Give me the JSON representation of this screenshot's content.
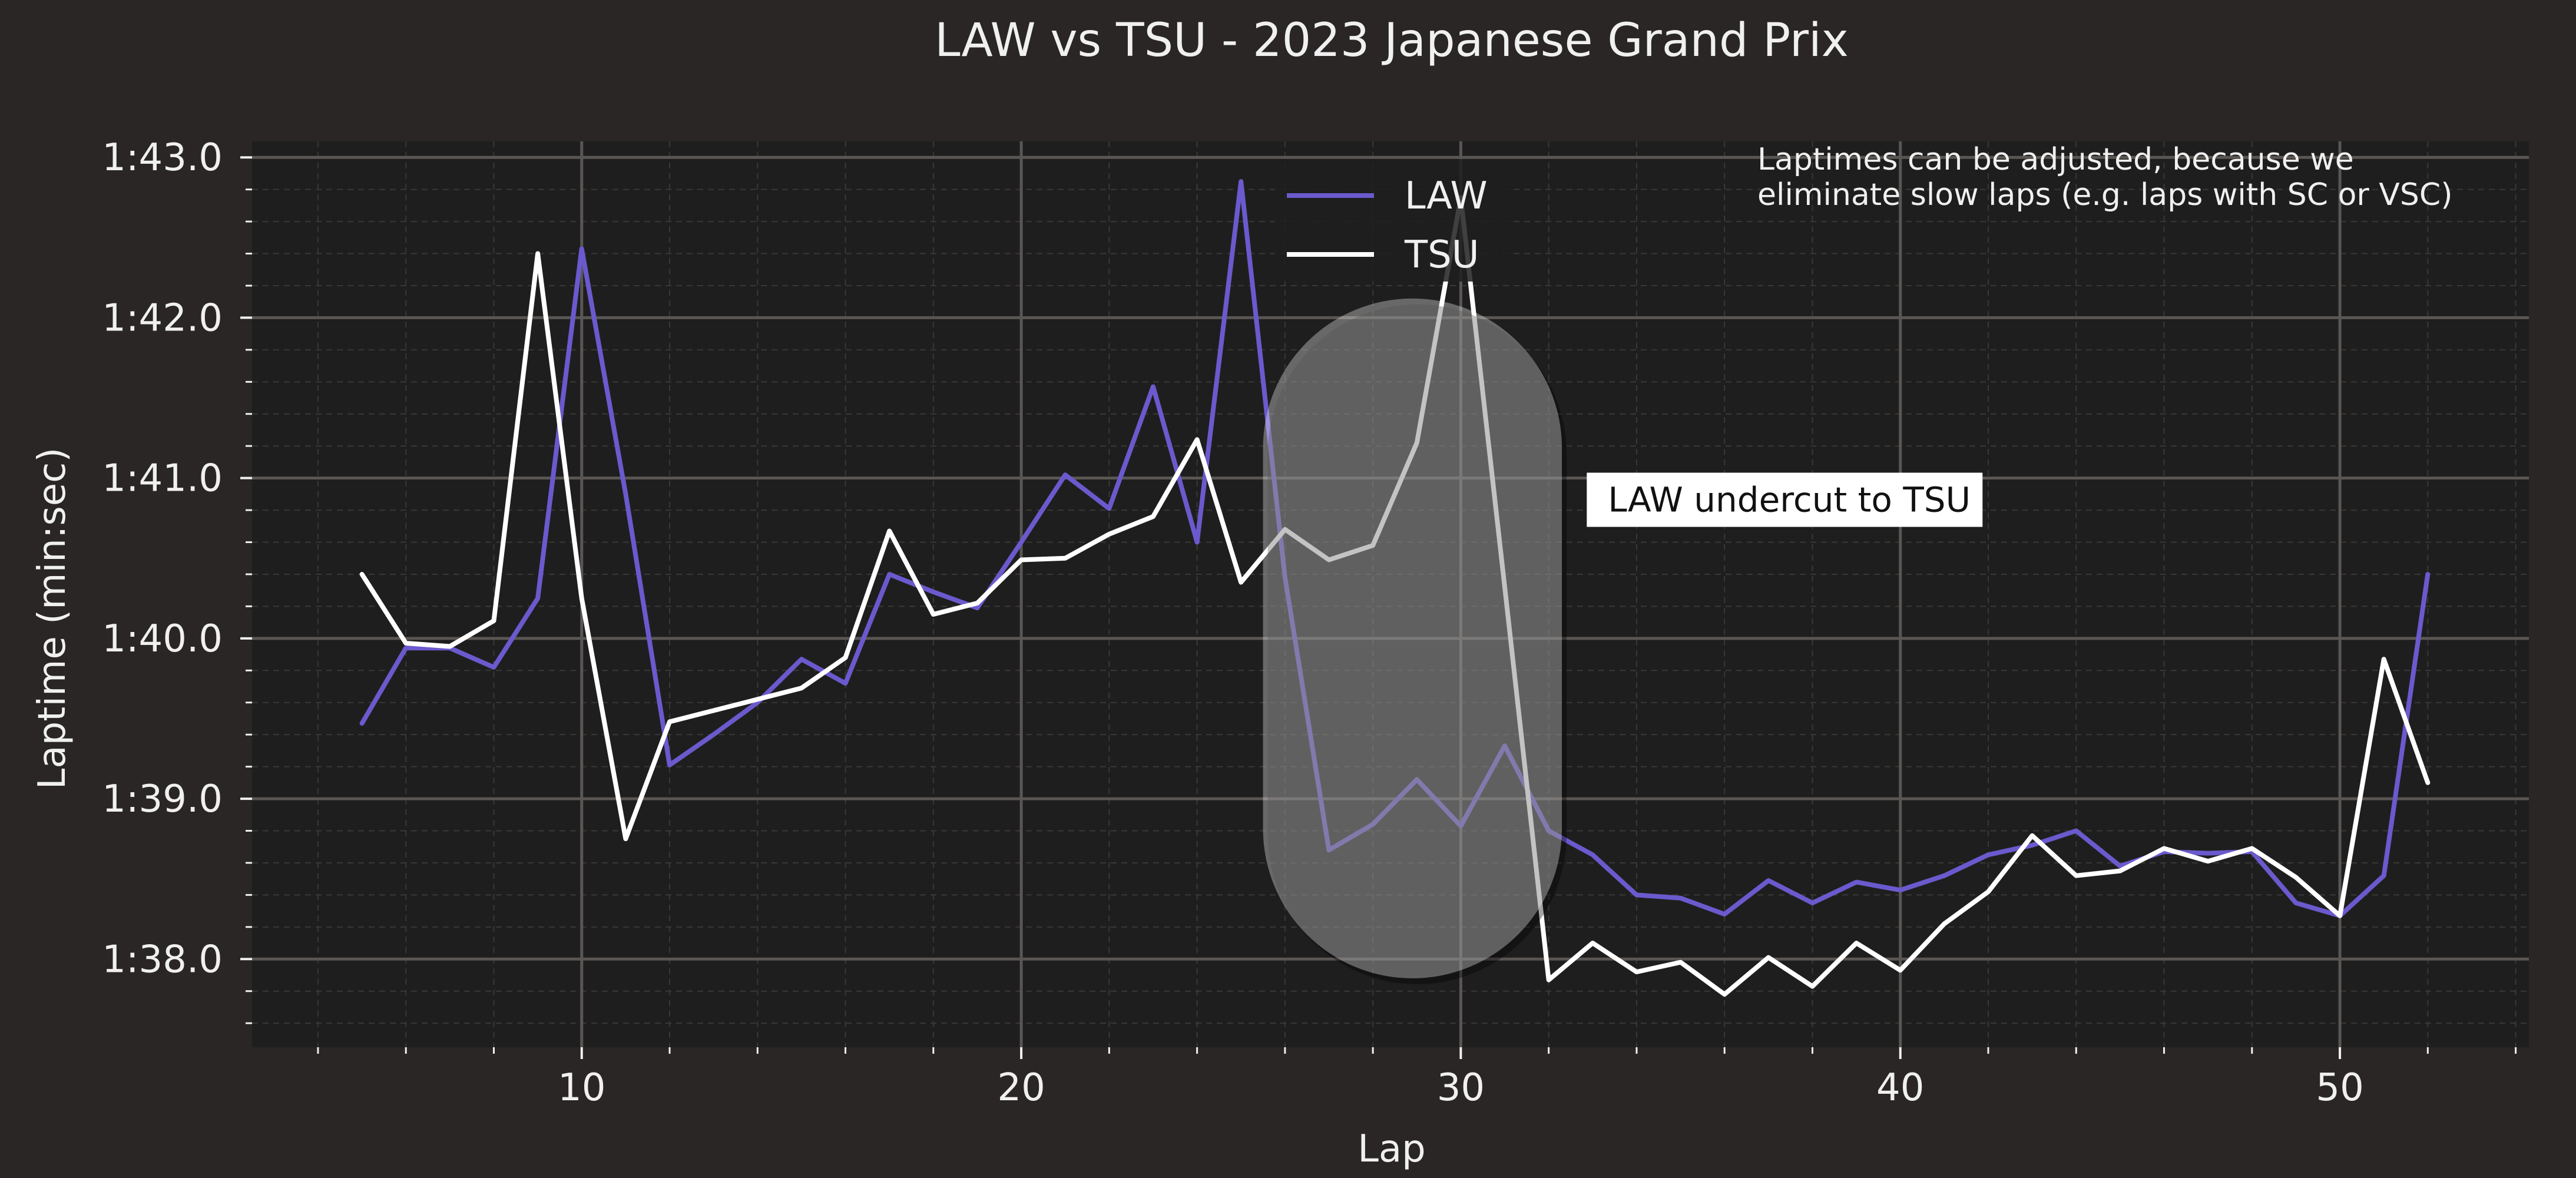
{
  "chart_data": {
    "type": "line",
    "title": "LAW vs TSU - 2023 Japanese Grand Prix",
    "xlabel": "Lap",
    "ylabel": "Laptime (min:sec)",
    "xlim": [
      2.5,
      54.3
    ],
    "ylim_seconds": [
      97.45,
      103.1
    ],
    "x_ticks": [
      10,
      20,
      30,
      40,
      50
    ],
    "y_ticks": [
      {
        "seconds": 98,
        "label": "1:38.0"
      },
      {
        "seconds": 99,
        "label": "1:39.0"
      },
      {
        "seconds": 100,
        "label": "1:40.0"
      },
      {
        "seconds": 101,
        "label": "1:41.0"
      },
      {
        "seconds": 102,
        "label": "1:42.0"
      },
      {
        "seconds": 103,
        "label": "1:43.0"
      }
    ],
    "grid": true,
    "legend_position": "top-center",
    "series": [
      {
        "name": "LAW",
        "color": "#6a5acd",
        "laps": [
          5,
          6,
          7,
          8,
          9,
          10,
          11,
          12,
          13,
          14,
          15,
          16,
          17,
          18,
          19,
          20,
          21,
          22,
          23,
          24,
          25,
          26,
          27,
          28,
          29,
          30,
          31,
          32,
          33,
          34,
          35,
          36,
          37,
          38,
          39,
          40,
          41,
          42,
          43,
          44,
          45,
          46,
          47,
          48,
          49,
          50,
          51,
          52
        ],
        "seconds": [
          99.47,
          99.94,
          99.94,
          99.82,
          100.25,
          102.43,
          100.9,
          99.21,
          99.4,
          99.6,
          99.87,
          99.72,
          100.4,
          100.29,
          100.19,
          100.6,
          101.02,
          100.81,
          101.57,
          100.6,
          102.85,
          100.38,
          98.68,
          98.84,
          99.12,
          98.83,
          99.33,
          98.8,
          98.65,
          98.4,
          98.38,
          98.28,
          98.49,
          98.35,
          98.48,
          98.43,
          98.52,
          98.65,
          98.71,
          98.8,
          98.58,
          98.67,
          98.66,
          98.67,
          98.35,
          98.27,
          98.52,
          100.4
        ]
      },
      {
        "name": "TSU",
        "color": "#ffffff",
        "laps": [
          5,
          6,
          7,
          8,
          9,
          10,
          11,
          12,
          13,
          14,
          15,
          16,
          17,
          18,
          19,
          20,
          21,
          22,
          23,
          24,
          25,
          26,
          27,
          28,
          29,
          30,
          31,
          32,
          33,
          34,
          35,
          36,
          37,
          38,
          39,
          40,
          41,
          42,
          43,
          44,
          45,
          46,
          47,
          48,
          49,
          50,
          51,
          52
        ],
        "seconds": [
          100.4,
          99.97,
          99.95,
          100.11,
          102.4,
          100.25,
          98.75,
          99.48,
          99.55,
          99.62,
          99.69,
          99.88,
          100.67,
          100.15,
          100.22,
          100.49,
          100.5,
          100.65,
          100.76,
          101.24,
          100.35,
          100.68,
          100.49,
          100.58,
          101.22,
          102.75,
          100.32,
          97.87,
          98.1,
          97.92,
          97.98,
          97.78,
          98.01,
          97.83,
          98.1,
          97.93,
          98.22,
          98.42,
          98.77,
          98.52,
          98.55,
          98.69,
          98.61,
          98.69,
          98.51,
          98.27,
          99.87,
          99.1
        ]
      }
    ],
    "annotations": [
      {
        "text": "LAW undercut to TSU",
        "highlight_laps": [
          25.5,
          32.3
        ],
        "highlight_seconds": [
          97.88,
          102.12
        ],
        "label_lap": 33.0,
        "label_seconds": 100.96
      }
    ],
    "note": [
      "Laptimes can be adjusted, because we",
      "eliminate slow laps (e.g. laps with SC or VSC)"
    ]
  },
  "style": {
    "figure_bg": "#292625",
    "axes_bg": "#1e1e1e",
    "major_grid": "#5a5653",
    "minor_grid": "#3a3836",
    "text_color": "#f0f0f0",
    "legend_bg": "#1e1e1e",
    "highlight_fill": "#ffffff",
    "annotation_box": "#ffffff",
    "annotation_text": "#111111"
  }
}
